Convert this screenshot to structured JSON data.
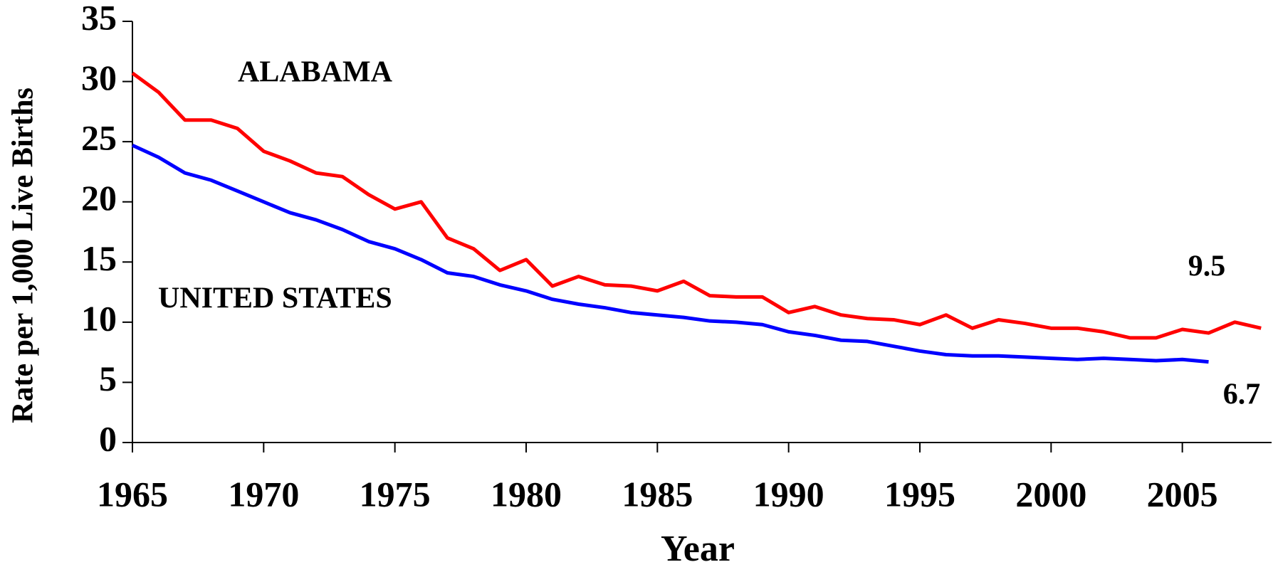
{
  "chart_data": {
    "type": "line",
    "x_label": "Year",
    "y_label": "Rate per 1,000 Live Births",
    "x": [
      1965,
      1966,
      1967,
      1968,
      1969,
      1970,
      1971,
      1972,
      1973,
      1974,
      1975,
      1976,
      1977,
      1978,
      1979,
      1980,
      1981,
      1982,
      1983,
      1984,
      1985,
      1986,
      1987,
      1988,
      1989,
      1990,
      1991,
      1992,
      1993,
      1994,
      1995,
      1996,
      1997,
      1998,
      1999,
      2000,
      2001,
      2002,
      2003,
      2004,
      2005,
      2006,
      2007,
      2008
    ],
    "series": [
      {
        "name": "ALABAMA",
        "color": "#ff0000",
        "values": [
          30.7,
          29.1,
          26.8,
          26.8,
          26.1,
          24.2,
          23.4,
          22.4,
          22.1,
          20.6,
          19.4,
          20.0,
          17.0,
          16.1,
          14.3,
          15.2,
          13.0,
          13.8,
          13.1,
          13.0,
          12.6,
          13.4,
          12.2,
          12.1,
          12.1,
          10.8,
          11.3,
          10.6,
          10.3,
          10.2,
          9.8,
          10.6,
          9.5,
          10.2,
          9.9,
          9.5,
          9.5,
          9.2,
          8.7,
          8.7,
          9.4,
          9.1,
          10.0,
          9.5
        ]
      },
      {
        "name": "UNITED STATES",
        "color": "#0000ff",
        "values": [
          24.7,
          23.7,
          22.4,
          21.8,
          20.9,
          20.0,
          19.1,
          18.5,
          17.7,
          16.7,
          16.1,
          15.2,
          14.1,
          13.8,
          13.1,
          12.6,
          11.9,
          11.5,
          11.2,
          10.8,
          10.6,
          10.4,
          10.1,
          10.0,
          9.8,
          9.2,
          8.9,
          8.5,
          8.4,
          8.0,
          7.6,
          7.3,
          7.2,
          7.2,
          7.1,
          7.0,
          6.9,
          7.0,
          6.9,
          6.8,
          6.9,
          6.7,
          null,
          null
        ]
      }
    ],
    "xlim": [
      1965,
      2008.4
    ],
    "xticks": [
      1965,
      1970,
      1975,
      1980,
      1985,
      1990,
      1995,
      2000,
      2005
    ],
    "ylim": [
      0,
      35
    ],
    "yticks": [
      0,
      5,
      10,
      15,
      20,
      25,
      30,
      35
    ],
    "grid": false
  }
}
